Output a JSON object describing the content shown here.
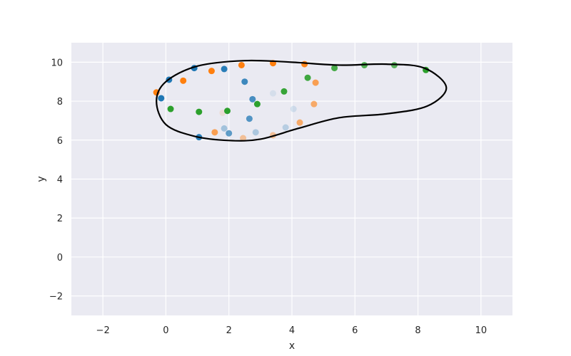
{
  "chart_data": {
    "type": "scatter",
    "title": "",
    "xlabel": "x",
    "ylabel": "y",
    "xlim": [
      -3,
      11
    ],
    "ylim": [
      -3,
      11
    ],
    "x_ticks": [
      -2,
      0,
      2,
      4,
      6,
      8,
      10
    ],
    "y_ticks": [
      -2,
      0,
      2,
      4,
      6,
      8,
      10
    ],
    "x_tick_labels": [
      "−2",
      "0",
      "2",
      "4",
      "6",
      "8",
      "10"
    ],
    "y_tick_labels": [
      "−2",
      "0",
      "2",
      "4",
      "6",
      "8",
      "10"
    ],
    "grid": true,
    "background_color": "#eaeaf2",
    "grid_color": "#ffffff",
    "series": [
      {
        "color": "#1f77b4",
        "points": [
          {
            "x": 0.1,
            "y": 9.1,
            "alpha": 1.0
          },
          {
            "x": 0.9,
            "y": 9.7,
            "alpha": 1.0
          },
          {
            "x": -0.15,
            "y": 8.15,
            "alpha": 1.0
          },
          {
            "x": 1.85,
            "y": 9.65,
            "alpha": 0.95
          },
          {
            "x": 1.05,
            "y": 6.15,
            "alpha": 0.95
          },
          {
            "x": 2.5,
            "y": 9.0,
            "alpha": 0.85
          },
          {
            "x": 2.75,
            "y": 8.1,
            "alpha": 0.8
          },
          {
            "x": 2.65,
            "y": 7.1,
            "alpha": 0.75
          },
          {
            "x": 2.0,
            "y": 6.35,
            "alpha": 0.7
          },
          {
            "x": 1.85,
            "y": 6.6,
            "alpha": 0.35
          },
          {
            "x": 2.85,
            "y": 6.4,
            "alpha": 0.3
          },
          {
            "x": 3.8,
            "y": 6.65,
            "alpha": 0.25
          },
          {
            "x": 4.05,
            "y": 7.6,
            "alpha": 0.15
          },
          {
            "x": 3.4,
            "y": 8.4,
            "alpha": 0.1
          }
        ]
      },
      {
        "color": "#ff7f0e",
        "points": [
          {
            "x": -0.3,
            "y": 8.45,
            "alpha": 1.0
          },
          {
            "x": 0.55,
            "y": 9.05,
            "alpha": 1.0
          },
          {
            "x": 1.45,
            "y": 9.55,
            "alpha": 1.0
          },
          {
            "x": 2.4,
            "y": 9.85,
            "alpha": 1.0
          },
          {
            "x": 3.4,
            "y": 9.95,
            "alpha": 1.0
          },
          {
            "x": 4.4,
            "y": 9.9,
            "alpha": 0.95
          },
          {
            "x": 4.75,
            "y": 8.95,
            "alpha": 0.7
          },
          {
            "x": 4.7,
            "y": 7.85,
            "alpha": 0.6
          },
          {
            "x": 4.25,
            "y": 6.9,
            "alpha": 0.6
          },
          {
            "x": 3.4,
            "y": 6.25,
            "alpha": 0.4
          },
          {
            "x": 2.45,
            "y": 6.1,
            "alpha": 0.4
          },
          {
            "x": 1.55,
            "y": 6.4,
            "alpha": 0.7
          },
          {
            "x": 1.8,
            "y": 7.4,
            "alpha": 0.12
          }
        ]
      },
      {
        "color": "#2ca02c",
        "points": [
          {
            "x": 0.15,
            "y": 7.6,
            "alpha": 1.0
          },
          {
            "x": 1.05,
            "y": 7.45,
            "alpha": 1.0
          },
          {
            "x": 1.95,
            "y": 7.5,
            "alpha": 1.0
          },
          {
            "x": 2.9,
            "y": 7.85,
            "alpha": 1.0
          },
          {
            "x": 3.75,
            "y": 8.5,
            "alpha": 0.95
          },
          {
            "x": 4.5,
            "y": 9.2,
            "alpha": 0.9
          },
          {
            "x": 5.35,
            "y": 9.7,
            "alpha": 0.85
          },
          {
            "x": 6.3,
            "y": 9.85,
            "alpha": 0.8
          },
          {
            "x": 7.25,
            "y": 9.85,
            "alpha": 0.75
          },
          {
            "x": 8.25,
            "y": 9.6,
            "alpha": 1.0
          }
        ]
      }
    ],
    "closed_curve": {
      "color": "#000000",
      "points": [
        {
          "x": -0.3,
          "y": 8.0
        },
        {
          "x": 0.0,
          "y": 9.0
        },
        {
          "x": 1.0,
          "y": 9.8
        },
        {
          "x": 2.5,
          "y": 10.08
        },
        {
          "x": 4.0,
          "y": 10.0
        },
        {
          "x": 5.5,
          "y": 9.85
        },
        {
          "x": 7.0,
          "y": 9.9
        },
        {
          "x": 8.2,
          "y": 9.7
        },
        {
          "x": 8.9,
          "y": 8.7
        },
        {
          "x": 8.3,
          "y": 7.75
        },
        {
          "x": 7.0,
          "y": 7.35
        },
        {
          "x": 5.5,
          "y": 7.15
        },
        {
          "x": 4.2,
          "y": 6.6
        },
        {
          "x": 3.0,
          "y": 6.05
        },
        {
          "x": 2.0,
          "y": 5.98
        },
        {
          "x": 0.9,
          "y": 6.2
        },
        {
          "x": 0.0,
          "y": 6.8
        }
      ]
    }
  }
}
